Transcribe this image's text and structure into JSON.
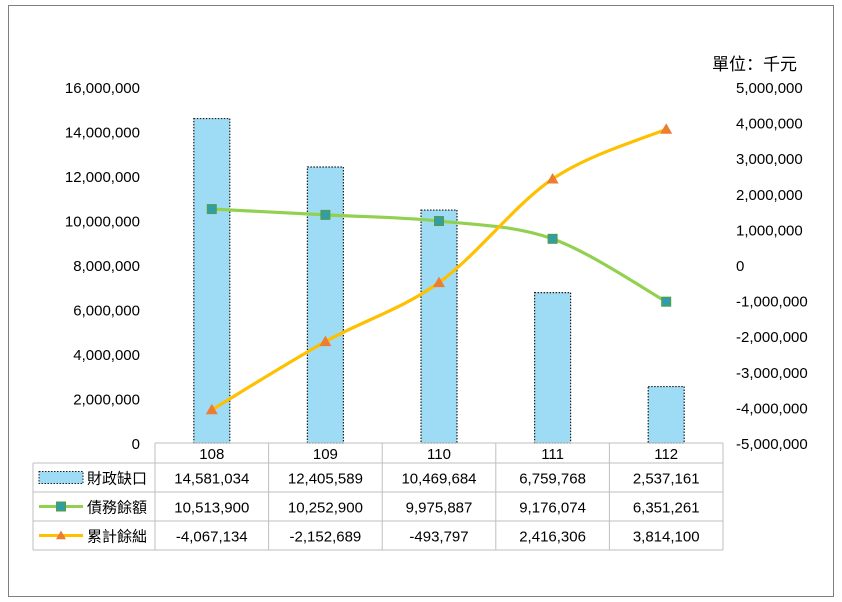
{
  "chart_data": {
    "type": "bar+line",
    "unit": "單位：千元",
    "categories": [
      "108",
      "109",
      "110",
      "111",
      "112"
    ],
    "left_axis": {
      "ticks": [
        "0",
        "2,000,000",
        "4,000,000",
        "6,000,000",
        "8,000,000",
        "10,000,000",
        "12,000,000",
        "14,000,000",
        "16,000,000"
      ],
      "ylim": [
        0,
        16000000
      ]
    },
    "right_axis": {
      "ticks": [
        "-5,000,000",
        "-4,000,000",
        "-3,000,000",
        "-2,000,000",
        "-1,000,000",
        "0",
        "1,000,000",
        "2,000,000",
        "3,000,000",
        "4,000,000",
        "5,000,000"
      ],
      "ylim": [
        -5000000,
        5000000
      ]
    },
    "series": [
      {
        "name": "財政缺口",
        "type": "bar",
        "axis": "left",
        "color": "#9edcf5",
        "values": [
          14581034,
          12405589,
          10469684,
          6759768,
          2537161
        ],
        "labels": [
          "14,581,034",
          "12,405,589",
          "10,469,684",
          "6,759,768",
          "2,537,161"
        ]
      },
      {
        "name": "債務餘額",
        "type": "line",
        "axis": "left",
        "color": "#92d050",
        "marker": "square",
        "marker_color": "#2f9ea8",
        "values": [
          10513900,
          10252900,
          9975887,
          9176074,
          6351261
        ],
        "labels": [
          "10,513,900",
          "10,252,900",
          "9,975,887",
          "9,176,074",
          "6,351,261"
        ]
      },
      {
        "name": "累計餘絀",
        "type": "line",
        "axis": "right",
        "color": "#ffc000",
        "marker": "triangle",
        "marker_color": "#ed7d31",
        "values": [
          -4067134,
          -2152689,
          -493797,
          2416306,
          3814100
        ],
        "labels": [
          "-4,067,134",
          "-2,152,689",
          "-493,797",
          "2,416,306",
          "3,814,100"
        ]
      }
    ]
  }
}
